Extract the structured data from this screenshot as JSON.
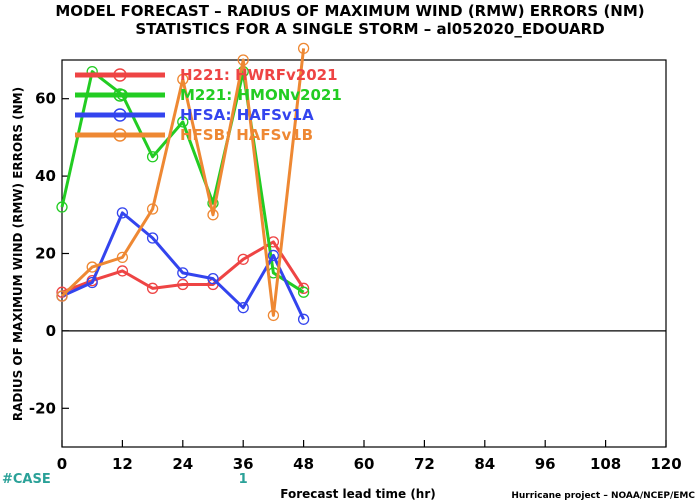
{
  "chart_data": {
    "type": "line",
    "title": "MODEL FORECAST – RADIUS OF MAXIMUM WIND (RMW) ERRORS (NM)",
    "subtitle": "STATISTICS FOR A SINGLE STORM – al052020_EDOUARD",
    "xlabel": "Forecast lead time (hr)",
    "ylabel": "RADIUS OF MAXIMUM WIND (RMW) ERRORS (NM)",
    "xlim": [
      0,
      120
    ],
    "ylim": [
      -30,
      70
    ],
    "xticks": [
      "0",
      "12",
      "24",
      "36",
      "48",
      "60",
      "72",
      "84",
      "96",
      "108",
      "120"
    ],
    "yticks": [
      "-20",
      "0",
      "20",
      "40",
      "60"
    ],
    "ytick_values": [
      -20,
      0,
      20,
      40,
      60
    ],
    "grid": false,
    "zero_line": true,
    "legend_position": "top-left",
    "case_label": "#CASE",
    "case_counts": [
      {
        "x": 36,
        "label": "1"
      }
    ],
    "credit": "Hurricane project – NOAA/NCEP/EMC",
    "x": [
      0,
      6,
      12,
      18,
      24,
      30,
      36,
      42,
      48
    ],
    "series": [
      {
        "name": "H221: HWRFv2021",
        "color": "#ee4444",
        "values": [
          10,
          13,
          15.5,
          11,
          12,
          12,
          18.5,
          23,
          11
        ]
      },
      {
        "name": "M221: HMONv2021",
        "color": "#22cc22",
        "values": [
          32,
          67,
          61,
          45,
          54,
          33,
          67,
          15,
          10
        ]
      },
      {
        "name": "HFSA: HAFSv1A",
        "color": "#3344ee",
        "values": [
          9,
          12.5,
          30.5,
          24,
          15,
          13.5,
          6,
          19.5,
          3
        ]
      },
      {
        "name": "HFSB: HAFSv1B",
        "color": "#ee8833",
        "values": [
          9,
          16.5,
          19,
          31.5,
          65,
          30,
          70,
          4,
          73
        ]
      }
    ]
  }
}
